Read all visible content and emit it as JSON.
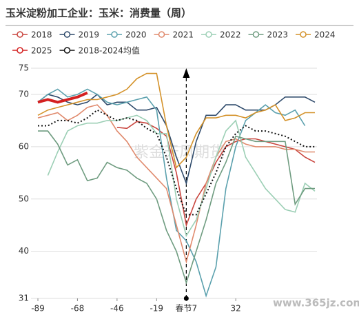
{
  "chart_data": {
    "type": "line",
    "title": "玉米淀粉加工企业：玉米：消费量（周）",
    "watermarks": [
      "紫金天风期货",
      "www.365jz.com"
    ],
    "categories": [
      "-89",
      null,
      null,
      null,
      "-68",
      null,
      null,
      null,
      "-46",
      null,
      null,
      null,
      "-19",
      null,
      null,
      "春节7",
      null,
      null,
      null,
      null,
      "32",
      null,
      null,
      null,
      null,
      null,
      null,
      null,
      null
    ],
    "ylim": [
      31,
      75
    ],
    "yticks": [
      31,
      40,
      50,
      60,
      70,
      75
    ],
    "grid": true,
    "series": [
      {
        "name": "2018",
        "color": "#c9453e",
        "values": [
          null,
          null,
          null,
          null,
          null,
          null,
          null,
          null,
          63.7,
          63.5,
          64.8,
          64.5,
          63.5,
          62,
          55,
          45,
          50,
          53,
          57,
          60,
          61,
          61.5,
          61.5,
          61,
          60.5,
          60,
          59.5,
          58,
          57
        ]
      },
      {
        "name": "2019",
        "color": "#2e4a6b",
        "values": [
          68.5,
          70,
          69.5,
          68.5,
          68,
          68.5,
          70,
          68,
          68.5,
          68.5,
          67,
          67,
          67.5,
          64,
          58,
          53,
          61,
          66,
          66,
          68,
          68,
          67,
          67,
          67,
          68,
          69.5,
          69.5,
          69.5,
          68.5
        ]
      },
      {
        "name": "2020",
        "color": "#5aa0ad",
        "values": [
          68.5,
          70,
          71,
          69.5,
          70,
          71,
          70,
          68.5,
          68,
          68.5,
          69,
          69.5,
          67,
          54,
          44,
          42,
          38,
          31.5,
          37,
          52,
          60,
          65,
          66.5,
          68,
          66.5,
          66,
          67,
          64,
          null
        ]
      },
      {
        "name": "2021",
        "color": "#e08a6d",
        "values": [
          65.5,
          66,
          66.5,
          65,
          66,
          67.5,
          68,
          66,
          63,
          61,
          58,
          56,
          54,
          52,
          45,
          38,
          45,
          53,
          58,
          61,
          61.5,
          60.5,
          60,
          60,
          60,
          59.5,
          59.5,
          59,
          59
        ]
      },
      {
        "name": "2022",
        "color": "#9ccfb5",
        "values": [
          null,
          54.5,
          59,
          63,
          64,
          64.5,
          64.5,
          65,
          65,
          65.5,
          66,
          65,
          62.5,
          62.5,
          50,
          43,
          46,
          52,
          58,
          63,
          65,
          58,
          55,
          52,
          50,
          48,
          47.5,
          53,
          51.5
        ]
      },
      {
        "name": "2023",
        "color": "#6f9c80",
        "values": [
          63,
          63,
          60.5,
          56.5,
          57.5,
          53.5,
          54,
          57,
          56,
          55.5,
          54,
          53,
          50,
          44,
          40,
          34,
          40,
          46,
          53,
          57,
          62,
          61.5,
          61,
          61,
          61,
          61,
          49,
          52,
          52
        ]
      },
      {
        "name": "2024",
        "color": "#d4922a",
        "values": [
          66,
          67,
          67.5,
          68,
          68.5,
          69,
          69,
          69.5,
          70,
          71,
          73,
          74,
          74,
          64,
          56,
          58,
          62.5,
          65.5,
          65.5,
          66,
          66,
          65.5,
          66.5,
          67,
          68,
          65,
          65.5,
          66.5,
          66.5
        ]
      },
      {
        "name": "2025",
        "color": "#d42020",
        "values": [
          68.5,
          69,
          68.5,
          69,
          69.5,
          70.3,
          null,
          null,
          null,
          null,
          null,
          null,
          null,
          null,
          null,
          null,
          null,
          null,
          null,
          null,
          null,
          null,
          null,
          null,
          null,
          null,
          null,
          null,
          null
        ]
      },
      {
        "name": "2018-2024均值",
        "color": "#111111",
        "values": [
          64,
          64,
          65,
          65,
          64.5,
          65.5,
          67,
          66,
          65,
          65.5,
          65,
          63.5,
          62.5,
          58,
          52,
          47,
          47,
          51,
          55,
          60,
          62.5,
          64,
          63,
          63,
          62.5,
          62,
          61,
          60,
          60
        ]
      }
    ]
  }
}
